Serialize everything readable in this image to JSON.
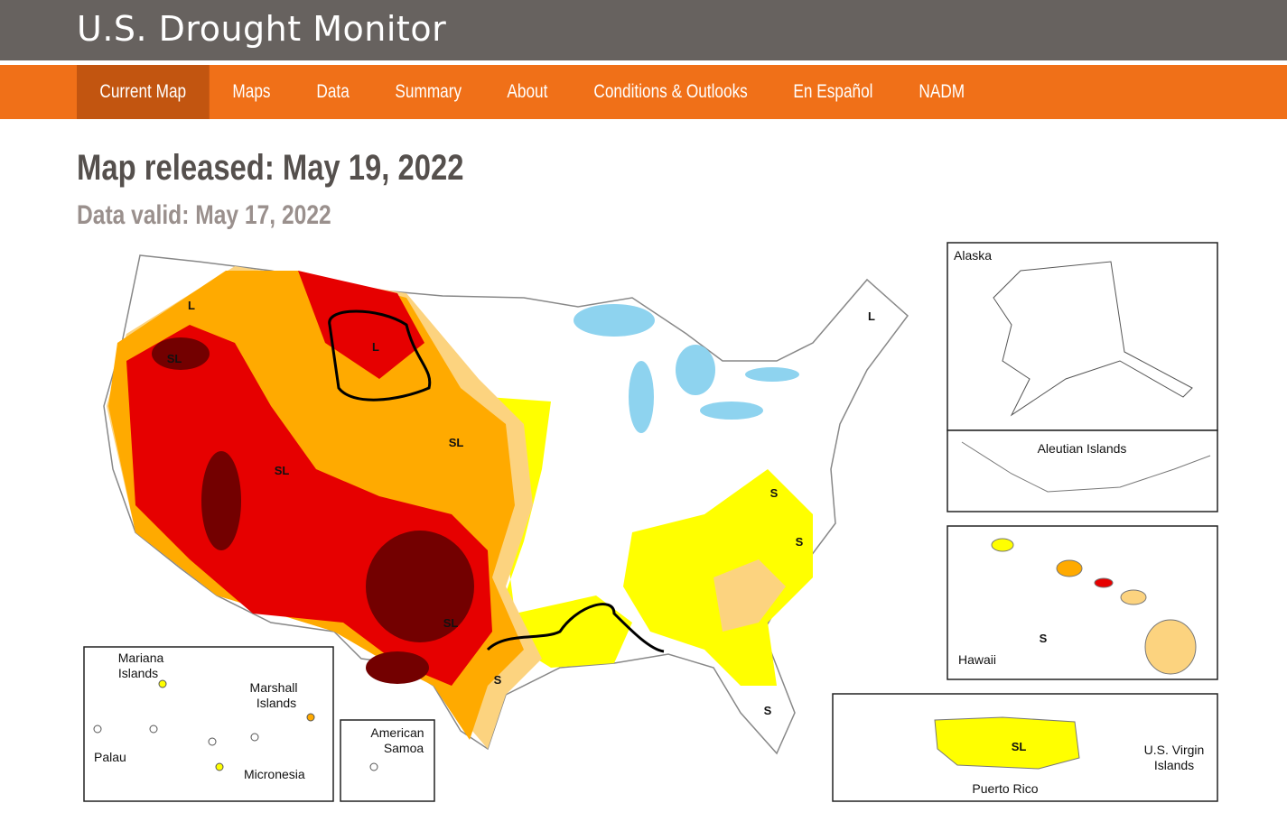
{
  "header": {
    "title": "U.S. Drought Monitor"
  },
  "nav": [
    {
      "label": "Current Map",
      "active": true
    },
    {
      "label": "Maps"
    },
    {
      "label": "Data"
    },
    {
      "label": "Summary"
    },
    {
      "label": "About"
    },
    {
      "label": "Conditions & Outlooks"
    },
    {
      "label": "En Español"
    },
    {
      "label": "NADM"
    }
  ],
  "release": {
    "released": "Map released: May 19, 2022",
    "valid": "Data valid: May 17, 2022"
  },
  "map": {
    "impact_labels": [
      "L",
      "L",
      "L",
      "SL",
      "SL",
      "SL",
      "SL",
      "S",
      "S",
      "S",
      "S"
    ],
    "insets": {
      "alaska": "Alaska",
      "aleutian": "Aleutian Islands",
      "hawaii": "Hawaii",
      "hawaii_label": "S",
      "puerto_rico": "Puerto Rico",
      "puerto_rico_label": "SL",
      "virgin_islands": [
        "U.S. Virgin",
        "Islands"
      ],
      "mariana": [
        "Mariana",
        "Islands"
      ],
      "marshall": [
        "Marshall",
        "Islands"
      ],
      "palau": "Palau",
      "micronesia": "Micronesia",
      "american_samoa": [
        "American",
        "Samoa"
      ]
    }
  }
}
